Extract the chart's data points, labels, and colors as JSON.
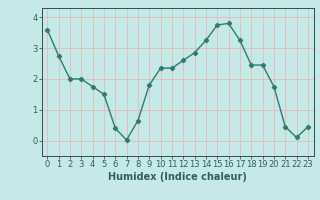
{
  "x": [
    0,
    1,
    2,
    3,
    4,
    5,
    6,
    7,
    8,
    9,
    10,
    11,
    12,
    13,
    14,
    15,
    16,
    17,
    18,
    19,
    20,
    21,
    22,
    23
  ],
  "y": [
    3.6,
    2.75,
    2.0,
    2.0,
    1.75,
    1.5,
    0.4,
    0.02,
    0.65,
    1.8,
    2.35,
    2.35,
    2.6,
    2.85,
    3.25,
    3.75,
    3.8,
    3.25,
    2.45,
    2.45,
    1.75,
    0.45,
    0.1,
    0.45
  ],
  "line_color": "#2e7d6e",
  "marker": "D",
  "markersize": 2.2,
  "linewidth": 1.0,
  "xlabel": "Humidex (Indice chaleur)",
  "xlim": [
    -0.5,
    23.5
  ],
  "ylim": [
    -0.5,
    4.3
  ],
  "yticks": [
    0,
    1,
    2,
    3,
    4
  ],
  "xticks": [
    0,
    1,
    2,
    3,
    4,
    5,
    6,
    7,
    8,
    9,
    10,
    11,
    12,
    13,
    14,
    15,
    16,
    17,
    18,
    19,
    20,
    21,
    22,
    23
  ],
  "bg_color": "#c5e8e8",
  "grid_color": "#e8b8b8",
  "axis_color": "#2e5050",
  "tick_color": "#2e6060",
  "xlabel_fontsize": 7.0,
  "tick_fontsize": 6.0
}
